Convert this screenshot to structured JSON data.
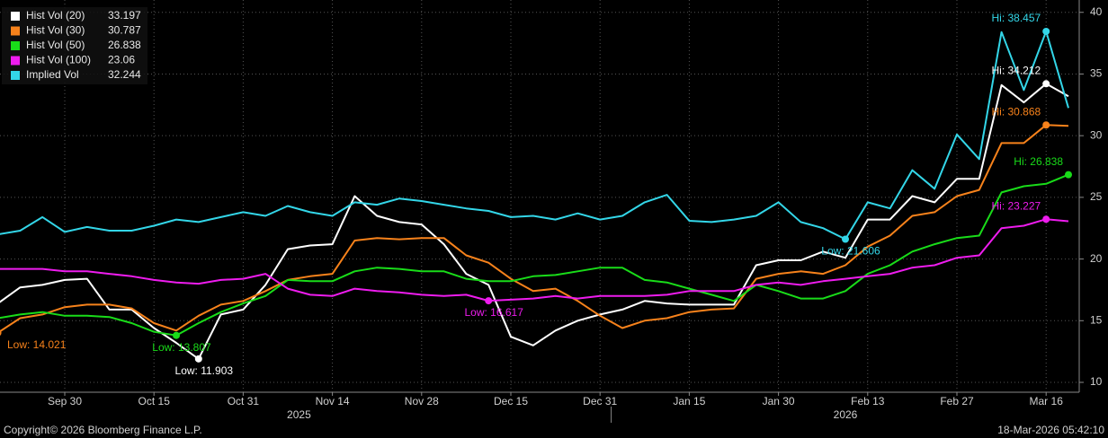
{
  "chart_data": {
    "type": "line",
    "categories": [
      null,
      null,
      null,
      "Sep 30",
      null,
      null,
      null,
      "Oct 15",
      null,
      null,
      null,
      "Oct 31",
      null,
      null,
      null,
      "Nov 14",
      null,
      null,
      null,
      "Nov 28",
      null,
      null,
      null,
      "Dec 15",
      null,
      null,
      null,
      "Dec 31",
      null,
      null,
      null,
      "Jan 15",
      null,
      null,
      null,
      "Jan 30",
      null,
      null,
      null,
      "Feb 13",
      null,
      null,
      null,
      "Feb 27",
      null,
      null,
      null,
      "Mar 16",
      null
    ],
    "x_groups": [
      {
        "label": "2025",
        "count": 28
      },
      {
        "label": "2026",
        "count": 21
      }
    ],
    "ylim": [
      9.2,
      41
    ],
    "yticks": [
      10,
      15,
      20,
      25,
      30,
      35,
      40
    ],
    "grid": true,
    "series": [
      {
        "name": "Hist Vol (20)",
        "color": "#ffffff",
        "values": [
          16.4,
          17.7,
          17.9,
          18.3,
          18.4,
          15.9,
          15.9,
          14.4,
          13.2,
          11.903,
          15.5,
          15.9,
          17.9,
          20.8,
          21.1,
          21.2,
          25.1,
          23.5,
          23.0,
          22.8,
          21.2,
          18.8,
          17.9,
          13.7,
          13.0,
          14.2,
          15.0,
          15.5,
          15.9,
          16.6,
          16.4,
          16.3,
          16.3,
          16.3,
          19.5,
          19.9,
          19.9,
          20.6,
          20.1,
          23.2,
          23.2,
          25.1,
          24.6,
          26.5,
          26.5,
          34.1,
          32.7,
          34.212,
          33.197
        ]
      },
      {
        "name": "Hist Vol (30)",
        "color": "#f7821b",
        "values": [
          14.021,
          15.2,
          15.5,
          16.1,
          16.3,
          16.3,
          16.0,
          14.8,
          14.2,
          15.4,
          16.3,
          16.6,
          17.4,
          18.3,
          18.6,
          18.8,
          21.5,
          21.7,
          21.6,
          21.7,
          21.7,
          20.3,
          19.7,
          18.4,
          17.4,
          17.6,
          16.6,
          15.4,
          14.4,
          15.0,
          15.2,
          15.7,
          15.9,
          16.0,
          18.4,
          18.8,
          19.0,
          18.8,
          19.5,
          21.0,
          21.9,
          23.5,
          23.8,
          25.1,
          25.6,
          29.4,
          29.4,
          30.868,
          30.787
        ]
      },
      {
        "name": "Hist Vol (50)",
        "color": "#19dc19",
        "values": [
          15.2,
          15.5,
          15.7,
          15.4,
          15.4,
          15.3,
          14.8,
          14.1,
          13.807,
          14.8,
          15.7,
          16.4,
          17.0,
          18.3,
          18.2,
          18.2,
          19.0,
          19.3,
          19.2,
          19.0,
          19.0,
          18.4,
          18.2,
          18.2,
          18.6,
          18.7,
          19.0,
          19.3,
          19.3,
          18.3,
          18.1,
          17.6,
          17.1,
          16.6,
          17.9,
          17.4,
          16.8,
          16.8,
          17.4,
          18.8,
          19.5,
          20.6,
          21.2,
          21.7,
          21.9,
          25.4,
          25.9,
          26.1,
          26.838
        ]
      },
      {
        "name": "Hist Vol (100)",
        "color": "#ee1cee",
        "values": [
          19.2,
          19.2,
          19.2,
          19.0,
          19.0,
          18.8,
          18.6,
          18.3,
          18.1,
          18.0,
          18.3,
          18.4,
          18.8,
          17.6,
          17.1,
          17.0,
          17.6,
          17.4,
          17.3,
          17.1,
          17.0,
          17.1,
          16.617,
          16.7,
          16.8,
          17.0,
          16.8,
          17.0,
          17.0,
          17.0,
          17.1,
          17.4,
          17.4,
          17.4,
          17.9,
          18.1,
          17.9,
          18.2,
          18.4,
          18.6,
          18.8,
          19.3,
          19.5,
          20.1,
          20.3,
          22.5,
          22.7,
          23.227,
          23.06
        ]
      },
      {
        "name": "Implied Vol",
        "color": "#33d6e8",
        "values": [
          22.0,
          22.3,
          23.4,
          22.2,
          22.6,
          22.3,
          22.3,
          22.7,
          23.2,
          23.0,
          23.4,
          23.8,
          23.5,
          24.3,
          23.8,
          23.5,
          24.6,
          24.4,
          24.9,
          24.7,
          24.4,
          24.1,
          23.9,
          23.4,
          23.5,
          23.2,
          23.7,
          23.2,
          23.5,
          24.6,
          25.2,
          23.1,
          23.0,
          23.2,
          23.5,
          24.6,
          23.0,
          22.5,
          21.606,
          24.6,
          24.1,
          27.2,
          25.7,
          30.1,
          28.1,
          38.4,
          33.7,
          38.457,
          32.244
        ]
      }
    ],
    "annotations": [
      {
        "label": "Low: 14.021",
        "value": 14.021
      },
      {
        "label": "Low: 13.807",
        "value": 13.807
      },
      {
        "label": "Low: 11.903",
        "value": 11.903
      },
      {
        "label": "Low: 16.617",
        "value": 16.617
      },
      {
        "label": "Low: 21.606",
        "value": 21.606
      },
      {
        "label": "Hi: 38.457",
        "value": 38.457
      },
      {
        "label": "Hi: 34.212",
        "value": 34.212
      },
      {
        "label": "Hi: 30.868",
        "value": 30.868
      },
      {
        "label": "Hi: 26.838",
        "value": 26.838
      },
      {
        "label": "Hi: 23.227",
        "value": 23.227
      }
    ]
  },
  "footer": {
    "left": "Copyright© 2026 Bloomberg Finance L.P.",
    "right": "18-Mar-2026 05:42:10"
  }
}
